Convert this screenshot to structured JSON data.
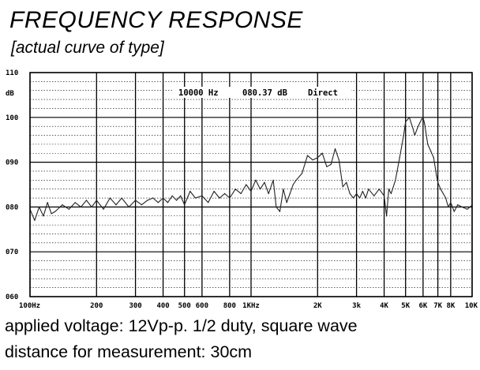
{
  "title": "FREQUENCY RESPONSE",
  "subtitle": "[actual curve of type]",
  "notes": [
    "applied voltage: 12Vp-p. 1/2 duty, square wave",
    "distance for measurement: 30cm"
  ],
  "chart_data": {
    "type": "line",
    "title": "FREQUENCY RESPONSE",
    "ylabel": "dB",
    "x_scale": "log",
    "xlim": [
      100,
      10000
    ],
    "ylim": [
      60,
      110
    ],
    "grid": true,
    "readout": {
      "freq": "10000 Hz",
      "level": "080.37 dB",
      "mode": "Direct"
    },
    "y_ticks": [
      {
        "value": 110,
        "label": "110"
      },
      {
        "value": 100,
        "label": "100"
      },
      {
        "value": 90,
        "label": "090"
      },
      {
        "value": 80,
        "label": "080"
      },
      {
        "value": 70,
        "label": "070"
      },
      {
        "value": 60,
        "label": "060"
      }
    ],
    "x_ticks": [
      {
        "value": 100,
        "label": "100Hz"
      },
      {
        "value": 200,
        "label": "200"
      },
      {
        "value": 300,
        "label": "300"
      },
      {
        "value": 400,
        "label": "400"
      },
      {
        "value": 500,
        "label": "500"
      },
      {
        "value": 600,
        "label": "600"
      },
      {
        "value": 800,
        "label": "800"
      },
      {
        "value": 1000,
        "label": "1KHz"
      },
      {
        "value": 2000,
        "label": "2K"
      },
      {
        "value": 3000,
        "label": "3k"
      },
      {
        "value": 4000,
        "label": "4K"
      },
      {
        "value": 5000,
        "label": "5K"
      },
      {
        "value": 6000,
        "label": "6K"
      },
      {
        "value": 7000,
        "label": "7K"
      },
      {
        "value": 8000,
        "label": "8K"
      },
      {
        "value": 10000,
        "label": "10K"
      }
    ],
    "series": [
      {
        "x": [
          100,
          105,
          110,
          115,
          120,
          125,
          130,
          140,
          150,
          160,
          170,
          180,
          190,
          200,
          215,
          230,
          245,
          260,
          280,
          300,
          320,
          340,
          360,
          380,
          400,
          420,
          440,
          460,
          480,
          500,
          530,
          560,
          600,
          640,
          680,
          720,
          760,
          800,
          850,
          900,
          950,
          1000,
          1050,
          1100,
          1150,
          1200,
          1260,
          1300,
          1350,
          1400,
          1450,
          1500,
          1550,
          1600,
          1700,
          1800,
          1900,
          2000,
          2100,
          2200,
          2300,
          2400,
          2500,
          2600,
          2700,
          2800,
          2900,
          3000,
          3100,
          3200,
          3300,
          3400,
          3600,
          3800,
          4000,
          4100,
          4200,
          4300,
          4500,
          4700,
          4900,
          5000,
          5200,
          5400,
          5500,
          5700,
          5900,
          6000,
          6100,
          6300,
          6500,
          6700,
          6900,
          7000,
          7200,
          7400,
          7600,
          7800,
          8000,
          8300,
          8600,
          9000,
          9500,
          10000
        ],
        "y": [
          79.5,
          77,
          80,
          78,
          81,
          78.5,
          79,
          80.5,
          79.5,
          81,
          80,
          81.5,
          80,
          81.5,
          79.5,
          82,
          80.5,
          82,
          80,
          81.5,
          80.5,
          81.5,
          82,
          81,
          82,
          81,
          82.5,
          81.5,
          82.5,
          80.5,
          83.5,
          82,
          82.5,
          81,
          83.5,
          82,
          83,
          82,
          84,
          83,
          85,
          83.5,
          86,
          84,
          85.5,
          83,
          86,
          80,
          79,
          84,
          81,
          83,
          85,
          86,
          87.5,
          91.5,
          90.5,
          91,
          92,
          89,
          89.5,
          93,
          90.5,
          84.5,
          85.5,
          83,
          82,
          83,
          82,
          83.5,
          82,
          84,
          82.5,
          84,
          82.5,
          78,
          84,
          83,
          86,
          91,
          96,
          99,
          100,
          97.5,
          96,
          98,
          99.5,
          100,
          98.5,
          94,
          92.5,
          91,
          87,
          85.5,
          84,
          83,
          82,
          80,
          81,
          79,
          80.5,
          80,
          79.5,
          80.37
        ]
      }
    ]
  }
}
